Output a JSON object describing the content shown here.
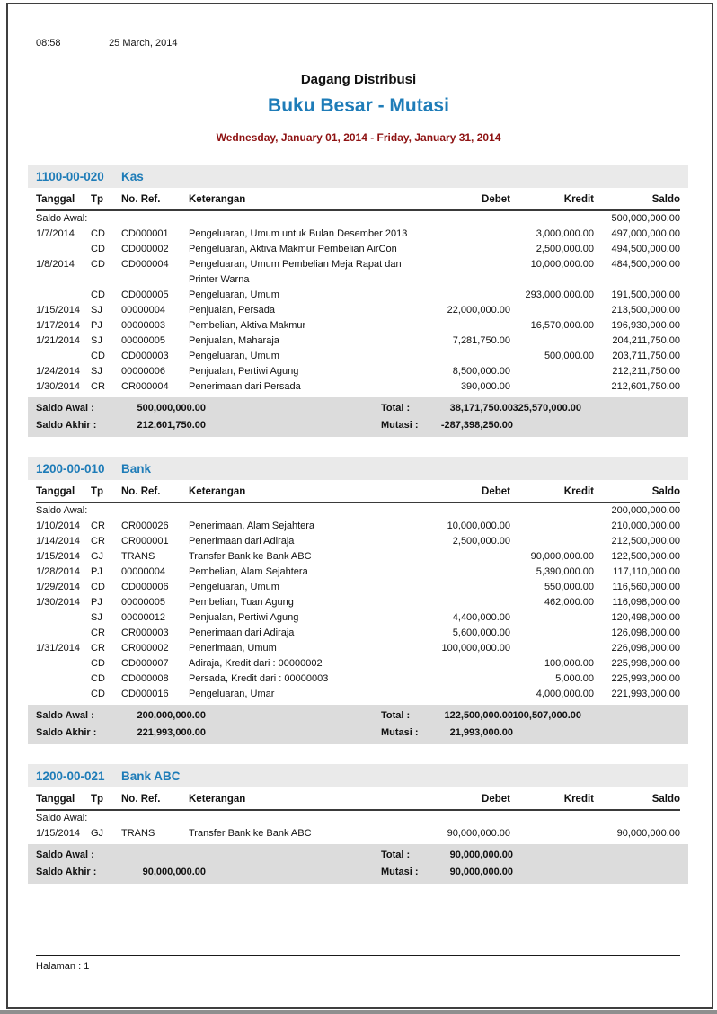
{
  "page": {
    "time": "08:58",
    "print_date": "25 March, 2014",
    "company": "Dagang Distribusi",
    "report_title": "Buku Besar - Mutasi",
    "period": "Wednesday, January 01, 2014 - Friday, January 31, 2014",
    "footer_label": "Halaman : 1"
  },
  "colors": {
    "accent_blue": "#1e7cb8",
    "period_dark_red": "#8e1212",
    "section_band_gray": "#eaeaea",
    "summary_band_gray": "#dcdcdc"
  },
  "table": {
    "columns": [
      "Tanggal",
      "Tp",
      "No. Ref.",
      "Keterangan",
      "Debet",
      "Kredit",
      "Saldo"
    ],
    "labels": {
      "opening": "Saldo Awal:",
      "saldo_awal": "Saldo Awal :",
      "saldo_akhir": "Saldo Akhir :",
      "total": "Total :",
      "mutasi": "Mutasi :"
    }
  },
  "sections": [
    {
      "code": "1100-00-020",
      "name": "Kas",
      "opening_saldo": "500,000,000.00",
      "rows": [
        {
          "tanggal": "1/7/2014",
          "tp": "CD",
          "ref": "CD000001",
          "keterangan": "Pengeluaran, Umum untuk Bulan Desember 2013",
          "debet": "",
          "kredit": "3,000,000.00",
          "saldo": "497,000,000.00"
        },
        {
          "tanggal": "",
          "tp": "CD",
          "ref": "CD000002",
          "keterangan": "Pengeluaran, Aktiva Makmur Pembelian AirCon",
          "debet": "",
          "kredit": "2,500,000.00",
          "saldo": "494,500,000.00"
        },
        {
          "tanggal": "1/8/2014",
          "tp": "CD",
          "ref": "CD000004",
          "keterangan": "Pengeluaran, Umum Pembelian Meja Rapat dan Printer Warna",
          "debet": "",
          "kredit": "10,000,000.00",
          "saldo": "484,500,000.00"
        },
        {
          "tanggal": "",
          "tp": "CD",
          "ref": "CD000005",
          "keterangan": "Pengeluaran, Umum",
          "debet": "",
          "kredit": "293,000,000.00",
          "saldo": "191,500,000.00"
        },
        {
          "tanggal": "1/15/2014",
          "tp": "SJ",
          "ref": "00000004",
          "keterangan": "Penjualan, Persada",
          "debet": "22,000,000.00",
          "kredit": "",
          "saldo": "213,500,000.00"
        },
        {
          "tanggal": "1/17/2014",
          "tp": "PJ",
          "ref": "00000003",
          "keterangan": "Pembelian, Aktiva Makmur",
          "debet": "",
          "kredit": "16,570,000.00",
          "saldo": "196,930,000.00"
        },
        {
          "tanggal": "1/21/2014",
          "tp": "SJ",
          "ref": "00000005",
          "keterangan": "Penjualan, Maharaja",
          "debet": "7,281,750.00",
          "kredit": "",
          "saldo": "204,211,750.00"
        },
        {
          "tanggal": "",
          "tp": "CD",
          "ref": "CD000003",
          "keterangan": "Pengeluaran, Umum",
          "debet": "",
          "kredit": "500,000.00",
          "saldo": "203,711,750.00"
        },
        {
          "tanggal": "1/24/2014",
          "tp": "SJ",
          "ref": "00000006",
          "keterangan": "Penjualan, Pertiwi Agung",
          "debet": "8,500,000.00",
          "kredit": "",
          "saldo": "212,211,750.00"
        },
        {
          "tanggal": "1/30/2014",
          "tp": "CR",
          "ref": "CR000004",
          "keterangan": "Penerimaan dari Persada",
          "debet": "390,000.00",
          "kredit": "",
          "saldo": "212,601,750.00"
        }
      ],
      "summary": {
        "saldo_awal": "500,000,000.00",
        "total_debet": "38,171,750.00",
        "total_kredit": "325,570,000.00",
        "saldo_akhir": "212,601,750.00",
        "mutasi": "-287,398,250.00"
      }
    },
    {
      "code": "1200-00-010",
      "name": "Bank",
      "opening_saldo": "200,000,000.00",
      "rows": [
        {
          "tanggal": "1/10/2014",
          "tp": "CR",
          "ref": "CR000026",
          "keterangan": "Penerimaan, Alam Sejahtera",
          "debet": "10,000,000.00",
          "kredit": "",
          "saldo": "210,000,000.00"
        },
        {
          "tanggal": "1/14/2014",
          "tp": "CR",
          "ref": "CR000001",
          "keterangan": "Penerimaan dari Adiraja",
          "debet": "2,500,000.00",
          "kredit": "",
          "saldo": "212,500,000.00"
        },
        {
          "tanggal": "1/15/2014",
          "tp": "GJ",
          "ref": "TRANS",
          "keterangan": "Transfer Bank ke Bank ABC",
          "debet": "",
          "kredit": "90,000,000.00",
          "saldo": "122,500,000.00"
        },
        {
          "tanggal": "1/28/2014",
          "tp": "PJ",
          "ref": "00000004",
          "keterangan": "Pembelian, Alam Sejahtera",
          "debet": "",
          "kredit": "5,390,000.00",
          "saldo": "117,110,000.00"
        },
        {
          "tanggal": "1/29/2014",
          "tp": "CD",
          "ref": "CD000006",
          "keterangan": "Pengeluaran, Umum",
          "debet": "",
          "kredit": "550,000.00",
          "saldo": "116,560,000.00"
        },
        {
          "tanggal": "1/30/2014",
          "tp": "PJ",
          "ref": "00000005",
          "keterangan": "Pembelian, Tuan Agung",
          "debet": "",
          "kredit": "462,000.00",
          "saldo": "116,098,000.00"
        },
        {
          "tanggal": "",
          "tp": "SJ",
          "ref": "00000012",
          "keterangan": "Penjualan, Pertiwi Agung",
          "debet": "4,400,000.00",
          "kredit": "",
          "saldo": "120,498,000.00"
        },
        {
          "tanggal": "",
          "tp": "CR",
          "ref": "CR000003",
          "keterangan": "Penerimaan dari Adiraja",
          "debet": "5,600,000.00",
          "kredit": "",
          "saldo": "126,098,000.00"
        },
        {
          "tanggal": "1/31/2014",
          "tp": "CR",
          "ref": "CR000002",
          "keterangan": "Penerimaan, Umum",
          "debet": "100,000,000.00",
          "kredit": "",
          "saldo": "226,098,000.00"
        },
        {
          "tanggal": "",
          "tp": "CD",
          "ref": "CD000007",
          "keterangan": "Adiraja, Kredit dari : 00000002",
          "debet": "",
          "kredit": "100,000.00",
          "saldo": "225,998,000.00"
        },
        {
          "tanggal": "",
          "tp": "CD",
          "ref": "CD000008",
          "keterangan": "Persada, Kredit dari : 00000003",
          "debet": "",
          "kredit": "5,000.00",
          "saldo": "225,993,000.00"
        },
        {
          "tanggal": "",
          "tp": "CD",
          "ref": "CD000016",
          "keterangan": "Pengeluaran, Umar",
          "debet": "",
          "kredit": "4,000,000.00",
          "saldo": "221,993,000.00"
        }
      ],
      "summary": {
        "saldo_awal": "200,000,000.00",
        "total_debet": "122,500,000.00",
        "total_kredit": "100,507,000.00",
        "saldo_akhir": "221,993,000.00",
        "mutasi": "21,993,000.00"
      }
    },
    {
      "code": "1200-00-021",
      "name": "Bank ABC",
      "opening_saldo": "",
      "rows": [
        {
          "tanggal": "1/15/2014",
          "tp": "GJ",
          "ref": "TRANS",
          "keterangan": "Transfer Bank ke Bank ABC",
          "debet": "90,000,000.00",
          "kredit": "",
          "saldo": "90,000,000.00"
        }
      ],
      "summary": {
        "saldo_awal": "",
        "total_debet": "90,000,000.00",
        "total_kredit": "",
        "saldo_akhir": "90,000,000.00",
        "mutasi": "90,000,000.00"
      }
    }
  ]
}
